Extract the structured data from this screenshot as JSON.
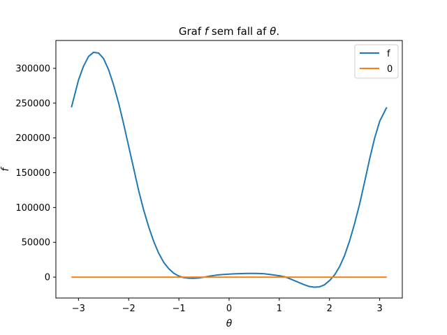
{
  "chart_data": {
    "type": "line",
    "title_prefix": "Graf ",
    "title_f": "f",
    "title_middle": " sem fall af ",
    "title_theta": "θ",
    "title_suffix": ".",
    "xlabel": "θ",
    "ylabel": "f",
    "xlim": [
      -3.45,
      3.45
    ],
    "ylim": [
      -30000,
      340000
    ],
    "xticks": [
      -3,
      -2,
      -1,
      0,
      1,
      2,
      3
    ],
    "xtick_labels": [
      "−3",
      "−2",
      "−1",
      "0",
      "1",
      "2",
      "3"
    ],
    "yticks": [
      0,
      50000,
      100000,
      150000,
      200000,
      250000,
      300000
    ],
    "ytick_labels": [
      "0",
      "50000",
      "100000",
      "150000",
      "200000",
      "250000",
      "300000"
    ],
    "legend_position": "top-right",
    "colors": {
      "f": "#1f77b4",
      "zero": "#ff7f0e"
    },
    "series": [
      {
        "name": "f",
        "x": [
          -3.14,
          -3.0,
          -2.9,
          -2.8,
          -2.7,
          -2.6,
          -2.5,
          -2.4,
          -2.3,
          -2.2,
          -2.1,
          -2.0,
          -1.9,
          -1.8,
          -1.7,
          -1.6,
          -1.5,
          -1.4,
          -1.3,
          -1.2,
          -1.1,
          -1.0,
          -0.9,
          -0.8,
          -0.7,
          -0.6,
          -0.5,
          -0.4,
          -0.3,
          -0.2,
          -0.1,
          0.0,
          0.1,
          0.2,
          0.3,
          0.4,
          0.5,
          0.6,
          0.7,
          0.8,
          0.9,
          1.0,
          1.1,
          1.2,
          1.3,
          1.4,
          1.5,
          1.6,
          1.7,
          1.8,
          1.9,
          2.0,
          2.1,
          2.2,
          2.3,
          2.4,
          2.5,
          2.6,
          2.7,
          2.8,
          2.9,
          3.0,
          3.14
        ],
        "y": [
          244000,
          283000,
          303000,
          317000,
          323000,
          322000,
          314000,
          298000,
          276000,
          250000,
          220000,
          188000,
          156000,
          124000,
          96000,
          72000,
          51000,
          34000,
          21000,
          12000,
          5500,
          1500,
          -800,
          -1600,
          -1700,
          -1200,
          0,
          1200,
          2400,
          3300,
          3900,
          4300,
          4700,
          5000,
          5200,
          5300,
          5300,
          5200,
          4800,
          4000,
          3000,
          2000,
          600,
          -2000,
          -5000,
          -8000,
          -11000,
          -13500,
          -14500,
          -14000,
          -11000,
          -5000,
          3000,
          15000,
          31000,
          52000,
          77000,
          105000,
          137000,
          170000,
          200000,
          224000,
          244000
        ]
      },
      {
        "name": "0",
        "x": [
          -3.14,
          3.14
        ],
        "y": [
          0,
          0
        ]
      }
    ]
  }
}
